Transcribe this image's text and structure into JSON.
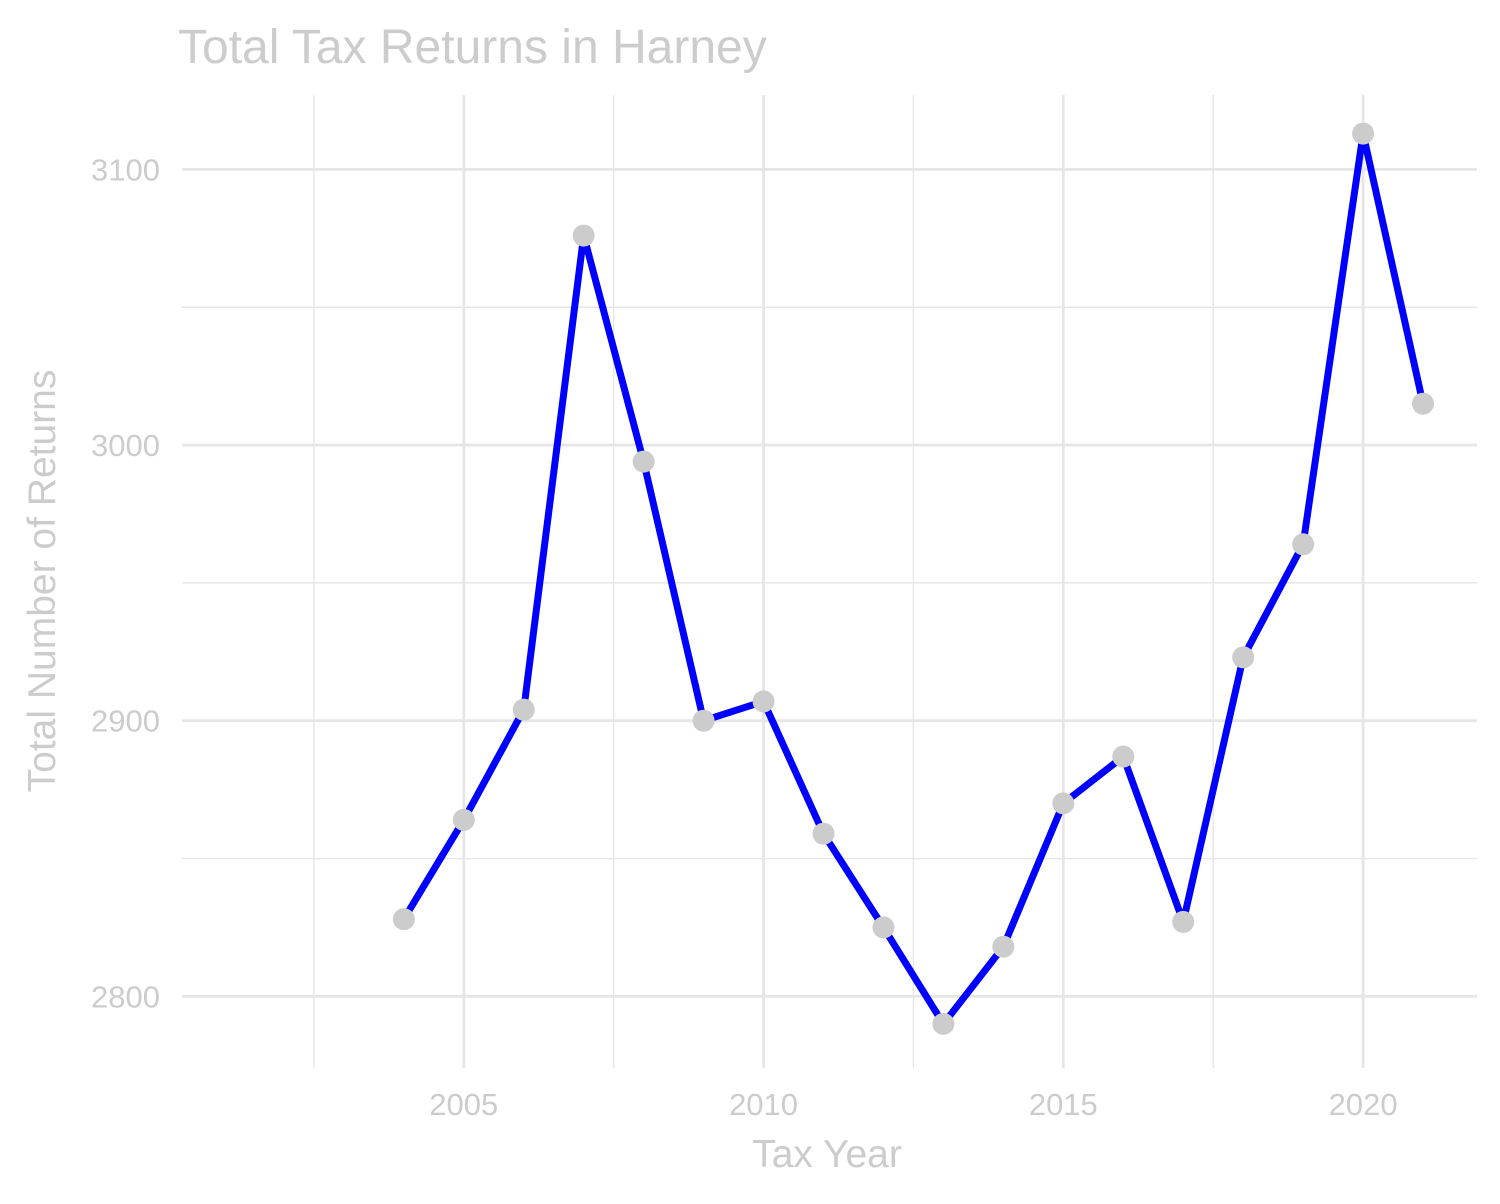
{
  "chart_data": {
    "type": "line",
    "title": "Total Tax Returns in Harney",
    "xlabel": "Tax Year",
    "ylabel": "Total Number of Returns",
    "x": [
      2004,
      2005,
      2006,
      2007,
      2008,
      2009,
      2010,
      2011,
      2012,
      2013,
      2014,
      2015,
      2016,
      2017,
      2018,
      2019,
      2020,
      2021
    ],
    "series": [
      {
        "values": [
          2828,
          2864,
          2904,
          3076,
          2994,
          2900,
          2907,
          2859,
          2825,
          2790,
          2818,
          2870,
          2887,
          2827,
          2923,
          2964,
          3113,
          3015
        ]
      }
    ],
    "xlim": [
      2000.3,
      2021.9
    ],
    "ylim": [
      2774,
      3127
    ],
    "x_ticks": [
      2005,
      2010,
      2015,
      2020
    ],
    "y_ticks": [
      2800,
      2900,
      3000,
      3100
    ],
    "grid": true,
    "colors": {
      "line": "#0000ff",
      "points": "#cccccc",
      "grid": "#e6e6e6",
      "text": "#cccccc"
    }
  }
}
